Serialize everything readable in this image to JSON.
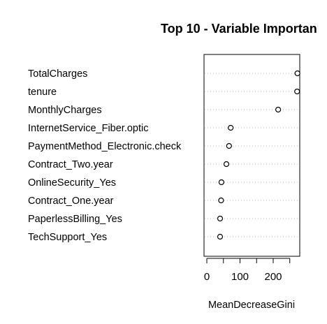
{
  "chart_data": {
    "type": "scatter",
    "title": "Top 10 - Variable Importan",
    "xlabel": "MeanDecreaseGini",
    "ylabel": "",
    "xlim": [
      -10,
      282
    ],
    "xticks": [
      0,
      50,
      100,
      150,
      200,
      250
    ],
    "xtick_labels": [
      "0",
      "",
      "100",
      "",
      "200",
      ""
    ],
    "grid": "dotted horizontal",
    "legend": "none",
    "variables": [
      "TotalCharges",
      "tenure",
      "MonthlyCharges",
      "InternetService_Fiber.optic",
      "PaymentMethod_Electronic.check",
      "Contract_Two.year",
      "OnlineSecurity_Yes",
      "Contract_One.year",
      "PaperlessBilling_Yes",
      "TechSupport_Yes"
    ],
    "values": [
      273,
      272,
      215,
      72,
      67,
      59,
      44,
      43,
      40,
      40
    ],
    "colors": {
      "point_stroke": "#000000",
      "grid": "#bbbbbb",
      "axis": "#000000"
    }
  }
}
